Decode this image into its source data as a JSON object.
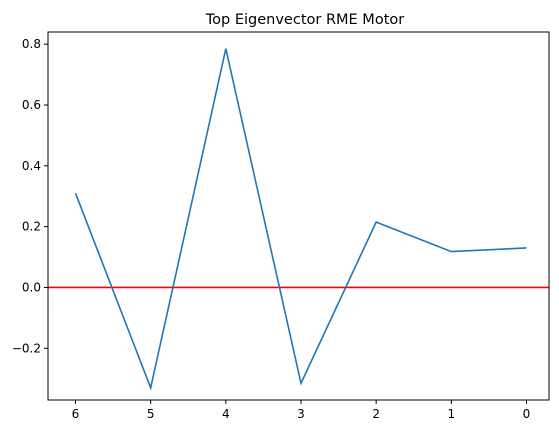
{
  "chart_data": {
    "type": "line",
    "title": "Top Eigenvector RME Motor",
    "xlabel": "",
    "ylabel": "",
    "x": [
      6,
      5,
      4,
      3,
      2,
      1,
      0
    ],
    "x_reversed": true,
    "series": [
      {
        "values": [
          0.31,
          -0.33,
          0.785,
          -0.315,
          0.215,
          0.118,
          0.13
        ],
        "color": "#1f77b4"
      }
    ],
    "reference_line": {
      "y": 0.0,
      "color": "#ff0000"
    },
    "ylim": [
      -0.37,
      0.84
    ],
    "x_ticks": [
      "6",
      "5",
      "4",
      "3",
      "2",
      "1",
      "0"
    ],
    "y_ticks": [
      {
        "value": 0.8,
        "label": "0.8"
      },
      {
        "value": 0.6,
        "label": "0.6"
      },
      {
        "value": 0.4,
        "label": "0.4"
      },
      {
        "value": 0.2,
        "label": "0.2"
      },
      {
        "value": 0.0,
        "label": "0.0"
      },
      {
        "value": -0.2,
        "label": "−0.2"
      }
    ],
    "grid": false,
    "legend": "none"
  }
}
